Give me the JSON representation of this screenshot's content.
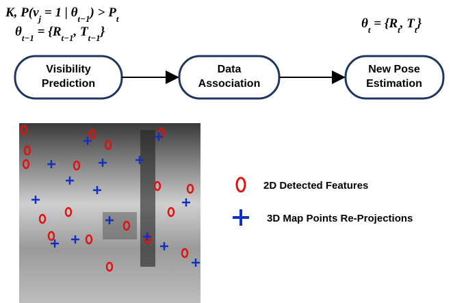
{
  "formulas": [
    {
      "parts": [
        "K, P(v",
        "j",
        " = 1 | θ",
        "t−1",
        ") > P",
        "t"
      ]
    },
    {
      "parts": [
        "θ",
        "t−1",
        " = {R",
        "t−1",
        ", T",
        "t−1",
        "}"
      ]
    },
    {
      "parts": [
        "θ",
        "t",
        " = {R",
        "t",
        ", T",
        "t",
        "}"
      ]
    }
  ],
  "nodes": [
    {
      "lines": [
        "Visibility",
        "Prediction"
      ]
    },
    {
      "lines": [
        "Data",
        "Association"
      ]
    },
    {
      "lines": [
        "New Pose",
        "Estimation"
      ]
    }
  ],
  "legend": [
    "2D Detected Features",
    "3D Map Points Re-Projections"
  ]
}
